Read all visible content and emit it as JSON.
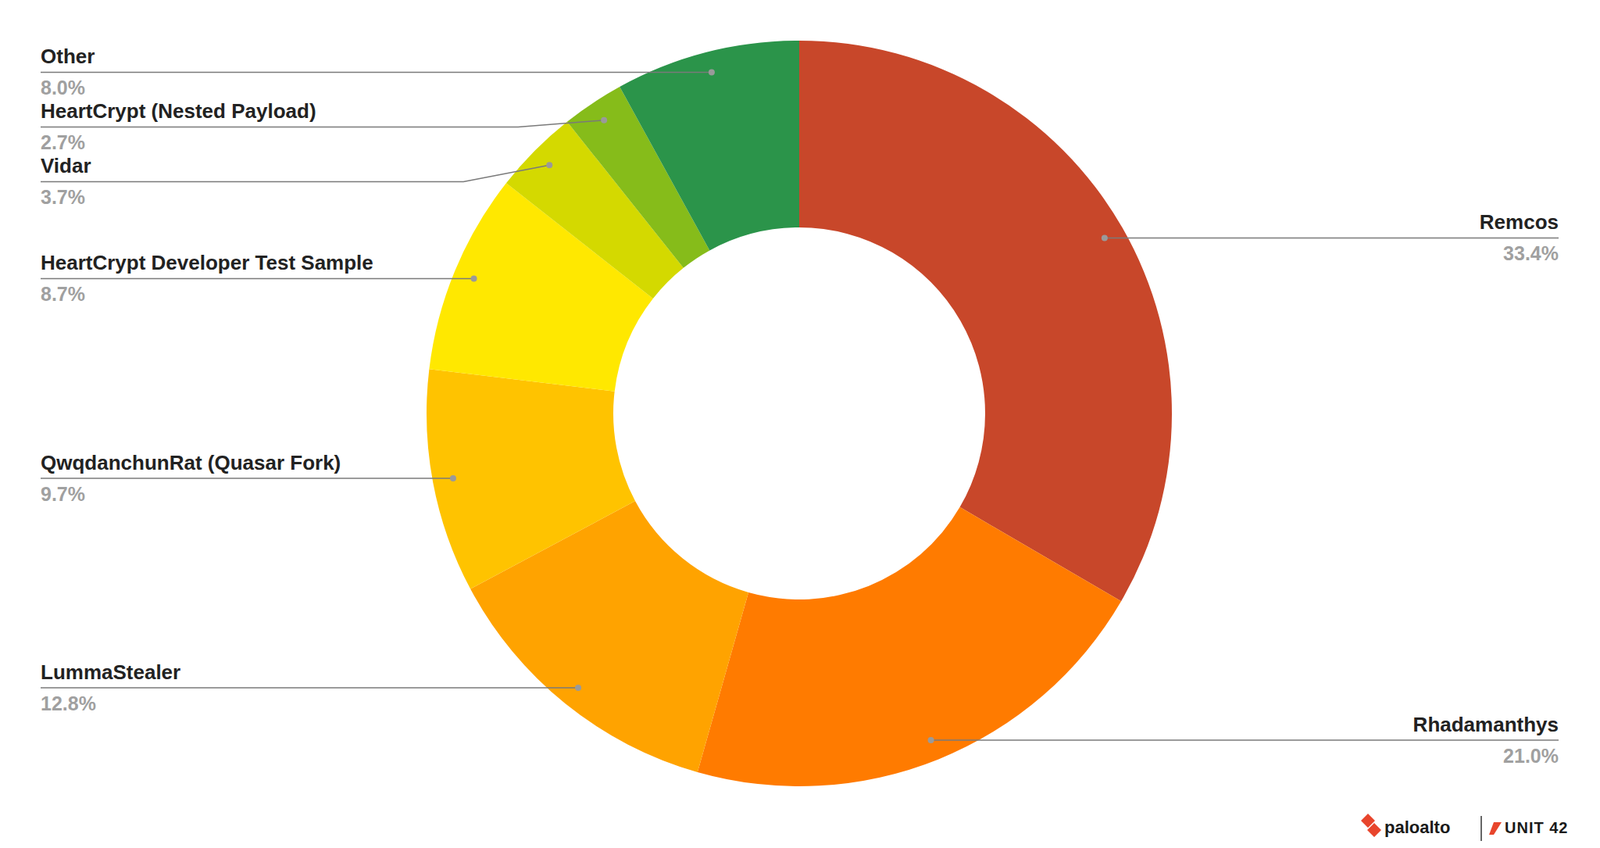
{
  "chart_data": {
    "type": "donut",
    "categories": [
      "Remcos",
      "Rhadamanthys",
      "LummaStealer",
      "QwqdanchunRat (Quasar Fork)",
      "HeartCrypt Developer Test Sample",
      "Vidar",
      "HeartCrypt (Nested Payload)",
      "Other"
    ],
    "values": [
      33.4,
      21.0,
      12.8,
      9.7,
      8.7,
      3.7,
      2.7,
      8.0
    ],
    "value_labels": [
      "33.4%",
      "21.0%",
      "12.8%",
      "9.7%",
      "8.7%",
      "3.7%",
      "2.7%",
      "8.0%"
    ],
    "colors": [
      "#c8472a",
      "#ff7b00",
      "#ffa300",
      "#ffc300",
      "#ffe800",
      "#d4d900",
      "#86bc1a",
      "#2b944a"
    ],
    "data_labels": true,
    "annotations": [
      "paloalto",
      "UNIT 42"
    ]
  }
}
